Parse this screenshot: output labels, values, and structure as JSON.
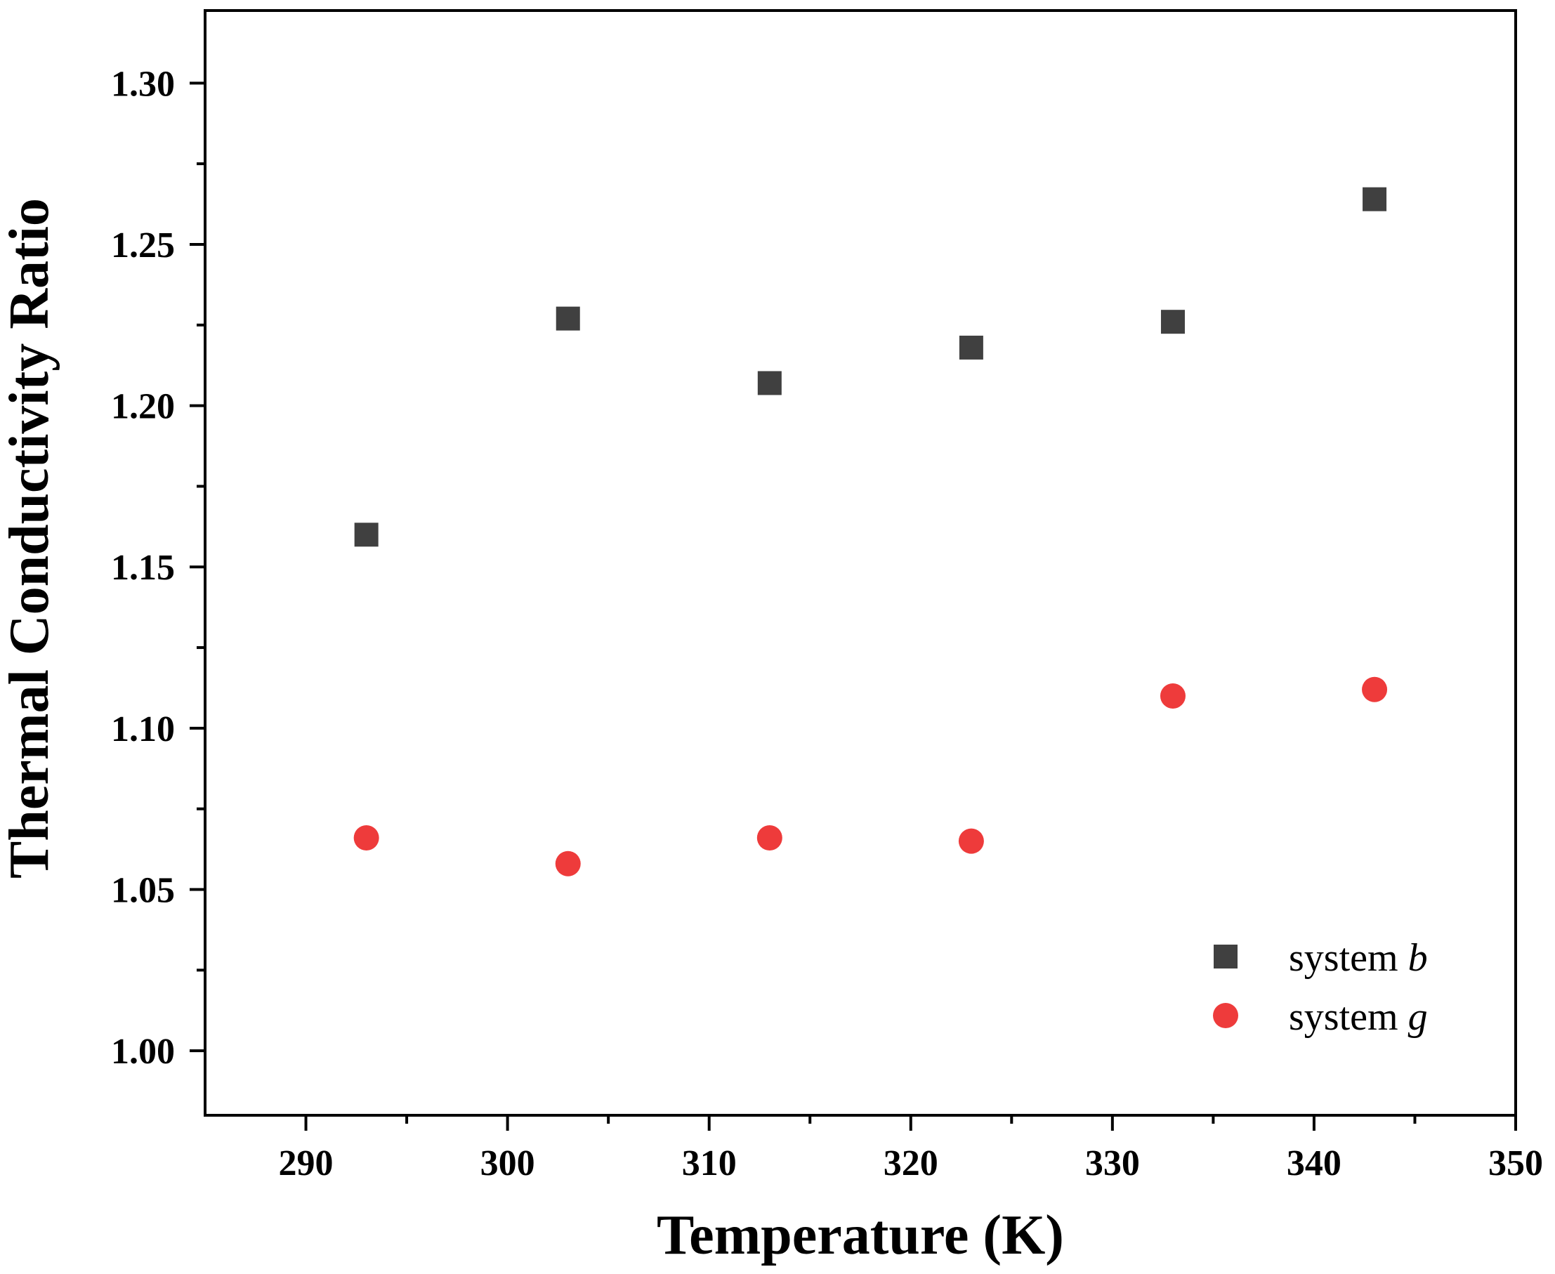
{
  "chart_data": {
    "type": "scatter",
    "title": "",
    "xlabel": "Temperature (K)",
    "ylabel": "Thermal Conductivity Ratio",
    "xlim": [
      285,
      350
    ],
    "ylim": [
      0.98,
      1.3225
    ],
    "x_ticks": [
      290,
      300,
      310,
      320,
      330,
      340,
      350
    ],
    "x_tick_labels": [
      "290",
      "300",
      "310",
      "320",
      "330",
      "340",
      "350"
    ],
    "y_ticks": [
      1.0,
      1.05,
      1.1,
      1.15,
      1.2,
      1.25,
      1.3
    ],
    "y_tick_labels": [
      "1.00",
      "1.05",
      "1.10",
      "1.15",
      "1.20",
      "1.25",
      "1.30"
    ],
    "grid": false,
    "legend_position": "bottom-right",
    "series": [
      {
        "legend_prefix": "system ",
        "legend_var": "b",
        "marker": "square",
        "color": "#404040",
        "x": [
          293,
          303,
          313,
          323,
          333,
          343
        ],
        "y": [
          1.16,
          1.227,
          1.207,
          1.218,
          1.226,
          1.264
        ]
      },
      {
        "legend_prefix": "system ",
        "legend_var": "g",
        "marker": "circle",
        "color": "#ee3b3b",
        "x": [
          293,
          303,
          313,
          323,
          333,
          343
        ],
        "y": [
          1.066,
          1.058,
          1.066,
          1.065,
          1.11,
          1.112
        ]
      }
    ]
  }
}
